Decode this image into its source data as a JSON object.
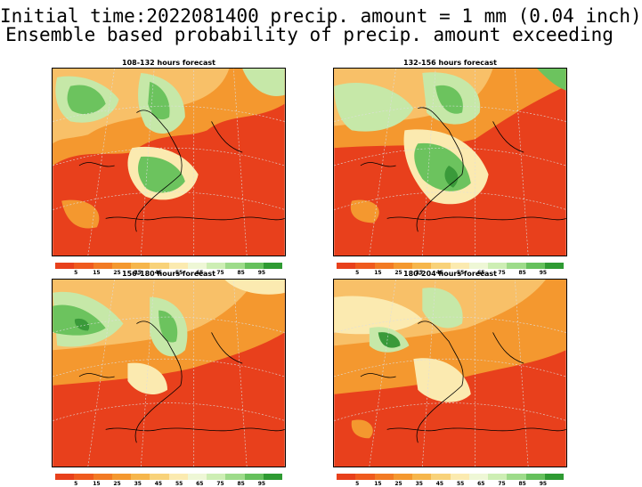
{
  "title_line1": "Initial time:2022081400 precip. amount = 1 mm (0.04 inch)",
  "title_line2": "Ensemble based probability of precip. amount exceeding",
  "panels": [
    {
      "title": "108-132 hours forecast"
    },
    {
      "title": "132-156 hours forecast"
    },
    {
      "title": "156-180 hours forecast"
    },
    {
      "title": "180-204 hours forecast"
    }
  ],
  "colorbar": {
    "colors": [
      "#e8401c",
      "#ef5a1e",
      "#f27a24",
      "#f4982f",
      "#f6b64c",
      "#f8d27a",
      "#fbeab0",
      "#eef7d6",
      "#cdeeb4",
      "#9ddb8a",
      "#65c05c",
      "#2e9a32"
    ],
    "ticks": [
      "5",
      "15",
      "25",
      "35",
      "45",
      "55",
      "65",
      "75",
      "85",
      "95"
    ]
  },
  "map_colors": {
    "base": "#e8401c",
    "orange": "#f4982f",
    "light_orange": "#f8c068",
    "cream": "#fbeab0",
    "light_green": "#c6e8a8",
    "green": "#6cc35e",
    "dark_green": "#3a9a3a"
  }
}
